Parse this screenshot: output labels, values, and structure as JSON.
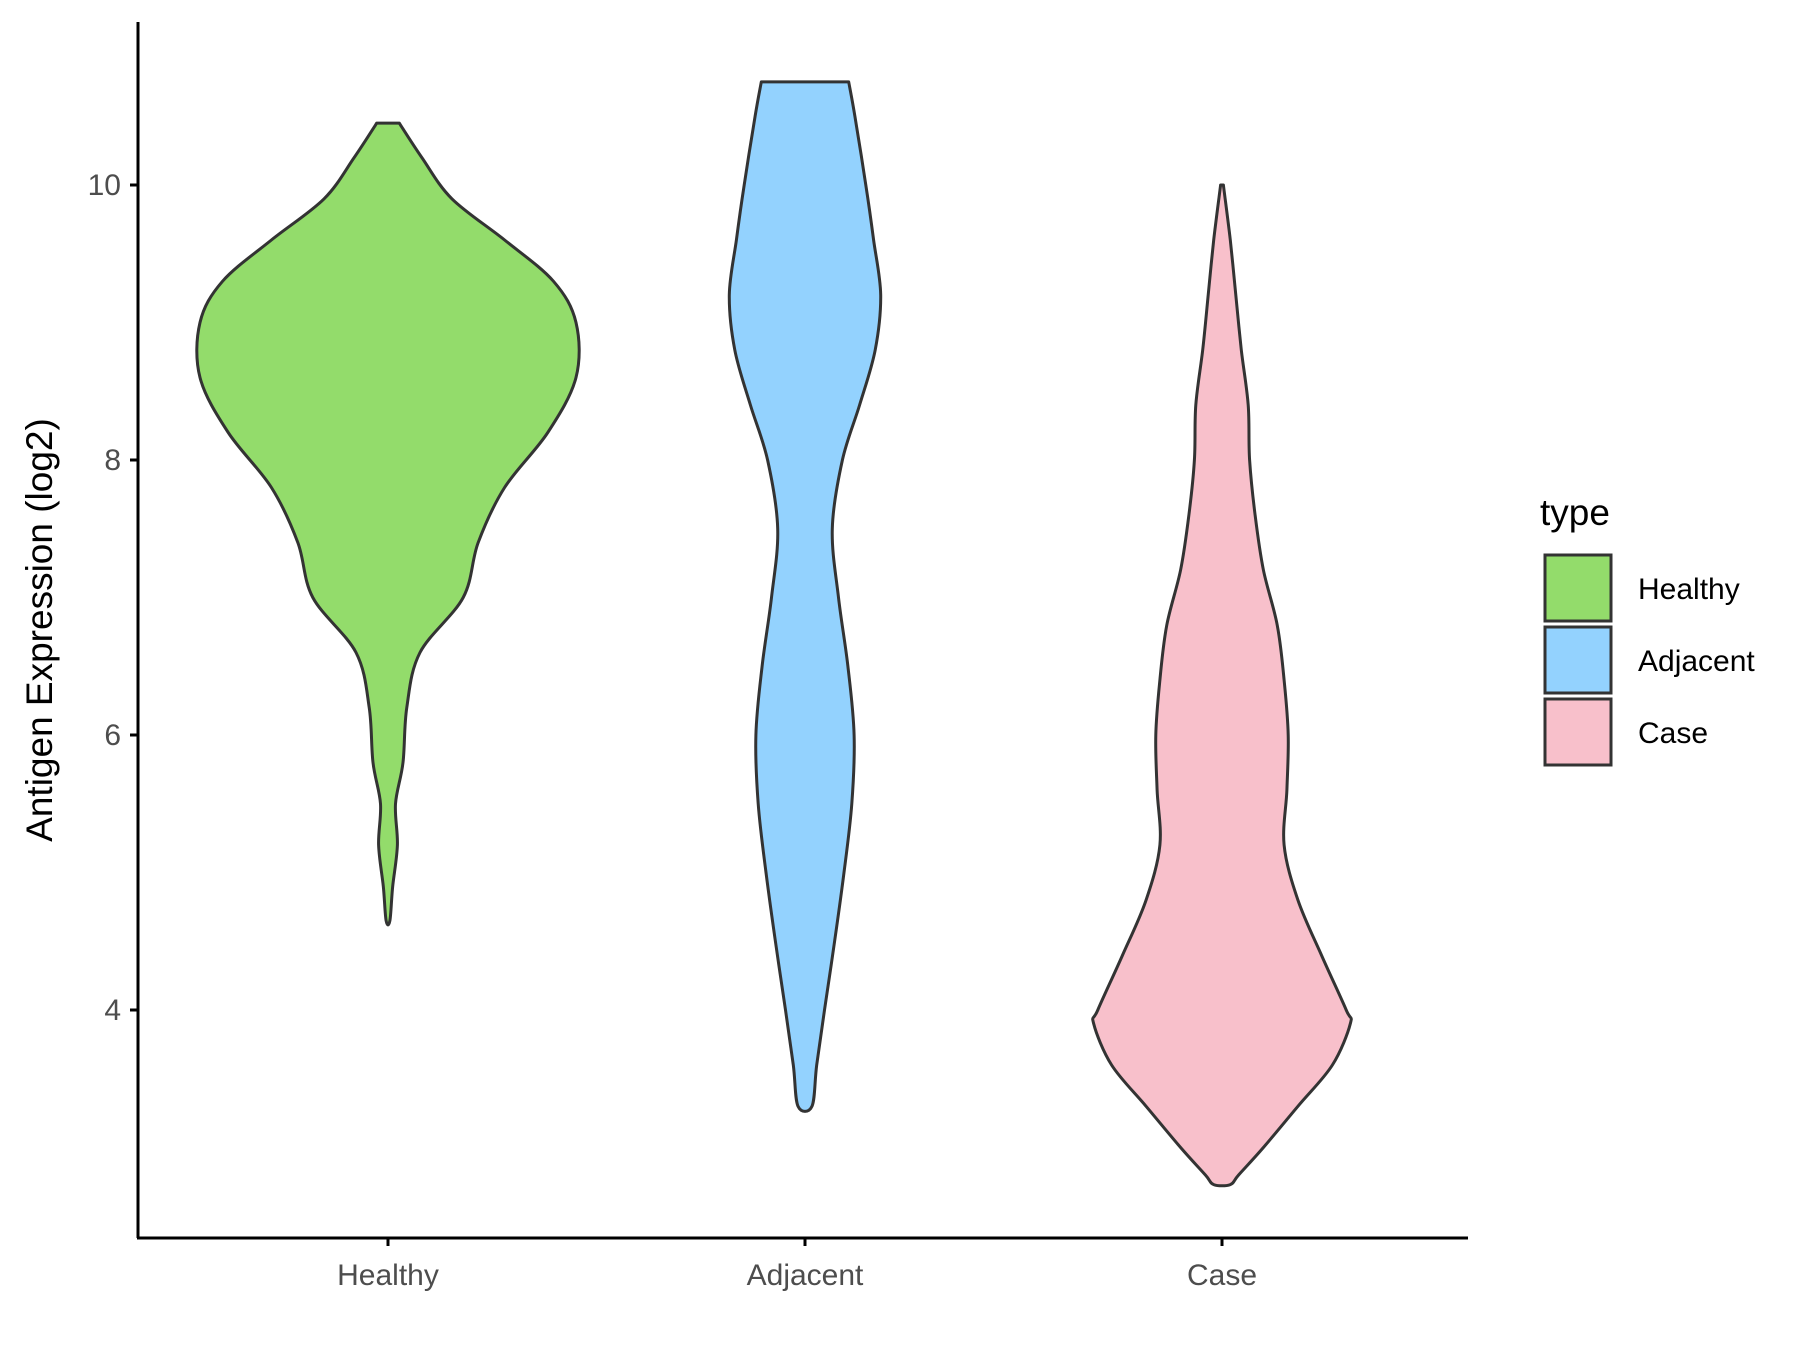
{
  "chart_data": {
    "type": "violin",
    "title": "",
    "xlabel": "",
    "ylabel": "Antigen Expression (log2)",
    "categories": [
      "Healthy",
      "Adjacent",
      "Case"
    ],
    "yticks": [
      4,
      6,
      8,
      10
    ],
    "ylim": [
      2.25,
      11.1
    ],
    "grid": false,
    "legend": {
      "title": "type",
      "position": "right",
      "entries": [
        "Healthy",
        "Adjacent",
        "Case"
      ]
    },
    "colors": {
      "Healthy": "#93dc6b",
      "Adjacent": "#93d2fe",
      "Case": "#f8c0cb",
      "outline": "#333333"
    },
    "series": [
      {
        "category": "Healthy",
        "min": 4.65,
        "max": 10.45,
        "profile": [
          [
            10.45,
            0.06
          ],
          [
            10.2,
            0.18
          ],
          [
            9.9,
            0.34
          ],
          [
            9.6,
            0.62
          ],
          [
            9.3,
            0.88
          ],
          [
            9.0,
            1.0
          ],
          [
            8.6,
            1.0
          ],
          [
            8.2,
            0.85
          ],
          [
            7.8,
            0.62
          ],
          [
            7.4,
            0.48
          ],
          [
            7.0,
            0.4
          ],
          [
            6.6,
            0.17
          ],
          [
            6.2,
            0.1
          ],
          [
            5.8,
            0.08
          ],
          [
            5.5,
            0.04
          ],
          [
            5.2,
            0.05
          ],
          [
            4.9,
            0.025
          ],
          [
            4.65,
            0.01
          ]
        ]
      },
      {
        "category": "Adjacent",
        "min": 3.3,
        "max": 10.75,
        "profile": [
          [
            10.75,
            0.56
          ],
          [
            10.5,
            0.64
          ],
          [
            10.0,
            0.78
          ],
          [
            9.6,
            0.88
          ],
          [
            9.2,
            0.97
          ],
          [
            8.8,
            0.9
          ],
          [
            8.4,
            0.7
          ],
          [
            8.0,
            0.48
          ],
          [
            7.5,
            0.35
          ],
          [
            7.0,
            0.43
          ],
          [
            6.5,
            0.55
          ],
          [
            6.0,
            0.63
          ],
          [
            5.5,
            0.6
          ],
          [
            5.0,
            0.5
          ],
          [
            4.5,
            0.38
          ],
          [
            4.0,
            0.25
          ],
          [
            3.6,
            0.15
          ],
          [
            3.3,
            0.09
          ]
        ]
      },
      {
        "category": "Case",
        "min": 2.73,
        "max": 10.0,
        "profile": [
          [
            10.0,
            0.01
          ],
          [
            9.6,
            0.06
          ],
          [
            9.2,
            0.1
          ],
          [
            8.8,
            0.14
          ],
          [
            8.4,
            0.19
          ],
          [
            8.0,
            0.2
          ],
          [
            7.6,
            0.24
          ],
          [
            7.2,
            0.3
          ],
          [
            6.8,
            0.4
          ],
          [
            6.4,
            0.45
          ],
          [
            6.0,
            0.48
          ],
          [
            5.6,
            0.47
          ],
          [
            5.2,
            0.45
          ],
          [
            4.8,
            0.55
          ],
          [
            4.4,
            0.72
          ],
          [
            4.0,
            0.9
          ],
          [
            3.9,
            0.93
          ],
          [
            3.6,
            0.8
          ],
          [
            3.3,
            0.55
          ],
          [
            3.0,
            0.3
          ],
          [
            2.8,
            0.12
          ],
          [
            2.73,
            0.06
          ]
        ]
      }
    ]
  }
}
